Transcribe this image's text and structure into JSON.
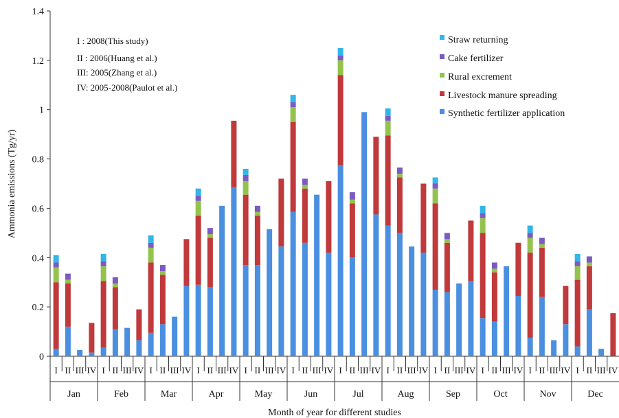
{
  "chart_data": {
    "type": "bar",
    "stacked": true,
    "xlabel": "Month of year for different studies",
    "ylabel": "Ammonia emissions (Tg/yr)",
    "ylim": [
      0,
      1.4
    ],
    "yticks": [
      "0",
      "0.2",
      "0.4",
      "0.6",
      "0.8",
      "1",
      "1.2",
      "1.4"
    ],
    "ytick_values": [
      0,
      0.2,
      0.4,
      0.6,
      0.8,
      1.0,
      1.2,
      1.4
    ],
    "grid": false,
    "legend_position": "top-right",
    "months": [
      "Jan",
      "Feb",
      "Mar",
      "Apr",
      "May",
      "Jun",
      "Jul",
      "Aug",
      "Sep",
      "Oct",
      "Nov",
      "Dec"
    ],
    "studies": [
      "I",
      "II",
      "III",
      "IV"
    ],
    "study_notes": [
      "I : 2008(This  study)",
      "II : 2006(Huang et al.)",
      "III: 2005(Zhang  et al.)",
      "IV: 2005-2008(Paulot  et al.)"
    ],
    "legend": [
      {
        "key": "straw",
        "label": "Straw returning",
        "color": "#33b5e8"
      },
      {
        "key": "cake",
        "label": "Cake fertilizer",
        "color": "#7b5bc1"
      },
      {
        "key": "rural",
        "label": "Rural excrement",
        "color": "#93c34d"
      },
      {
        "key": "livestock",
        "label": "Livestock manure spreading",
        "color": "#c0393b"
      },
      {
        "key": "synthetic",
        "label": "Synthetic fertilizer application",
        "color": "#4a8fe0"
      }
    ],
    "series_order": [
      "synthetic",
      "livestock",
      "rural",
      "cake",
      "straw"
    ],
    "bars": [
      {
        "month": "Jan",
        "study": "I",
        "synthetic": 0.03,
        "livestock": 0.27,
        "rural": 0.06,
        "cake": 0.02,
        "straw": 0.03
      },
      {
        "month": "Jan",
        "study": "II",
        "synthetic": 0.12,
        "livestock": 0.175,
        "rural": 0.015,
        "cake": 0.025
      },
      {
        "month": "Jan",
        "study": "III",
        "synthetic": 0.025
      },
      {
        "month": "Jan",
        "study": "IV",
        "synthetic": 0.015,
        "livestock": 0.12
      },
      {
        "month": "Feb",
        "study": "I",
        "synthetic": 0.035,
        "livestock": 0.27,
        "rural": 0.06,
        "cake": 0.02,
        "straw": 0.03
      },
      {
        "month": "Feb",
        "study": "II",
        "synthetic": 0.11,
        "livestock": 0.17,
        "rural": 0.015,
        "cake": 0.025
      },
      {
        "month": "Feb",
        "study": "III",
        "synthetic": 0.115
      },
      {
        "month": "Feb",
        "study": "IV",
        "synthetic": 0.065,
        "livestock": 0.125
      },
      {
        "month": "Mar",
        "study": "I",
        "synthetic": 0.095,
        "livestock": 0.285,
        "rural": 0.06,
        "cake": 0.02,
        "straw": 0.03
      },
      {
        "month": "Mar",
        "study": "II",
        "synthetic": 0.13,
        "livestock": 0.2,
        "rural": 0.015,
        "cake": 0.025
      },
      {
        "month": "Mar",
        "study": "III",
        "synthetic": 0.16
      },
      {
        "month": "Mar",
        "study": "IV",
        "synthetic": 0.285,
        "livestock": 0.19
      },
      {
        "month": "Apr",
        "study": "I",
        "synthetic": 0.29,
        "livestock": 0.28,
        "rural": 0.06,
        "cake": 0.02,
        "straw": 0.03
      },
      {
        "month": "Apr",
        "study": "II",
        "synthetic": 0.28,
        "livestock": 0.2,
        "rural": 0.015,
        "cake": 0.025
      },
      {
        "month": "Apr",
        "study": "III",
        "synthetic": 0.61
      },
      {
        "month": "Apr",
        "study": "IV",
        "synthetic": 0.685,
        "livestock": 0.27
      },
      {
        "month": "May",
        "study": "I",
        "synthetic": 0.37,
        "livestock": 0.285,
        "rural": 0.055,
        "cake": 0.025,
        "straw": 0.025
      },
      {
        "month": "May",
        "study": "II",
        "synthetic": 0.37,
        "livestock": 0.2,
        "rural": 0.015,
        "cake": 0.025
      },
      {
        "month": "May",
        "study": "III",
        "synthetic": 0.515
      },
      {
        "month": "May",
        "study": "IV",
        "synthetic": 0.445,
        "livestock": 0.275
      },
      {
        "month": "Jun",
        "study": "I",
        "synthetic": 0.585,
        "livestock": 0.365,
        "rural": 0.06,
        "cake": 0.02,
        "straw": 0.03
      },
      {
        "month": "Jun",
        "study": "II",
        "synthetic": 0.46,
        "livestock": 0.22,
        "rural": 0.015,
        "cake": 0.025
      },
      {
        "month": "Jun",
        "study": "III",
        "synthetic": 0.655
      },
      {
        "month": "Jun",
        "study": "IV",
        "synthetic": 0.42,
        "livestock": 0.29
      },
      {
        "month": "Jul",
        "study": "I",
        "synthetic": 0.775,
        "livestock": 0.365,
        "rural": 0.06,
        "cake": 0.02,
        "straw": 0.03
      },
      {
        "month": "Jul",
        "study": "II",
        "synthetic": 0.4,
        "livestock": 0.22,
        "rural": 0.015,
        "cake": 0.03
      },
      {
        "month": "Jul",
        "study": "III",
        "synthetic": 0.99
      },
      {
        "month": "Jul",
        "study": "IV",
        "synthetic": 0.575,
        "livestock": 0.315
      },
      {
        "month": "Aug",
        "study": "I",
        "synthetic": 0.53,
        "livestock": 0.365,
        "rural": 0.06,
        "cake": 0.02,
        "straw": 0.03
      },
      {
        "month": "Aug",
        "study": "II",
        "synthetic": 0.5,
        "livestock": 0.225,
        "rural": 0.015,
        "cake": 0.025
      },
      {
        "month": "Aug",
        "study": "III",
        "synthetic": 0.445
      },
      {
        "month": "Aug",
        "study": "IV",
        "synthetic": 0.42,
        "livestock": 0.28
      },
      {
        "month": "Sep",
        "study": "I",
        "synthetic": 0.27,
        "livestock": 0.35,
        "rural": 0.06,
        "cake": 0.02,
        "straw": 0.025
      },
      {
        "month": "Sep",
        "study": "II",
        "synthetic": 0.26,
        "livestock": 0.2,
        "rural": 0.015,
        "cake": 0.025
      },
      {
        "month": "Sep",
        "study": "III",
        "synthetic": 0.295
      },
      {
        "month": "Sep",
        "study": "IV",
        "synthetic": 0.305,
        "livestock": 0.245
      },
      {
        "month": "Oct",
        "study": "I",
        "synthetic": 0.155,
        "livestock": 0.345,
        "rural": 0.06,
        "cake": 0.02,
        "straw": 0.03
      },
      {
        "month": "Oct",
        "study": "II",
        "synthetic": 0.14,
        "livestock": 0.2,
        "rural": 0.015,
        "cake": 0.025
      },
      {
        "month": "Oct",
        "study": "III",
        "synthetic": 0.365
      },
      {
        "month": "Oct",
        "study": "IV",
        "synthetic": 0.245,
        "livestock": 0.215
      },
      {
        "month": "Nov",
        "study": "I",
        "synthetic": 0.075,
        "livestock": 0.345,
        "rural": 0.06,
        "cake": 0.02,
        "straw": 0.03
      },
      {
        "month": "Nov",
        "study": "II",
        "synthetic": 0.24,
        "livestock": 0.2,
        "rural": 0.015,
        "cake": 0.025
      },
      {
        "month": "Nov",
        "study": "III",
        "synthetic": 0.065
      },
      {
        "month": "Nov",
        "study": "IV",
        "synthetic": 0.13,
        "livestock": 0.155
      },
      {
        "month": "Dec",
        "study": "I",
        "synthetic": 0.04,
        "livestock": 0.27,
        "rural": 0.055,
        "cake": 0.02,
        "straw": 0.03
      },
      {
        "month": "Dec",
        "study": "II",
        "synthetic": 0.19,
        "livestock": 0.175,
        "rural": 0.015,
        "cake": 0.025
      },
      {
        "month": "Dec",
        "study": "III",
        "synthetic": 0.03
      },
      {
        "month": "Dec",
        "study": "IV",
        "synthetic": 0.0,
        "livestock": 0.175
      }
    ]
  }
}
